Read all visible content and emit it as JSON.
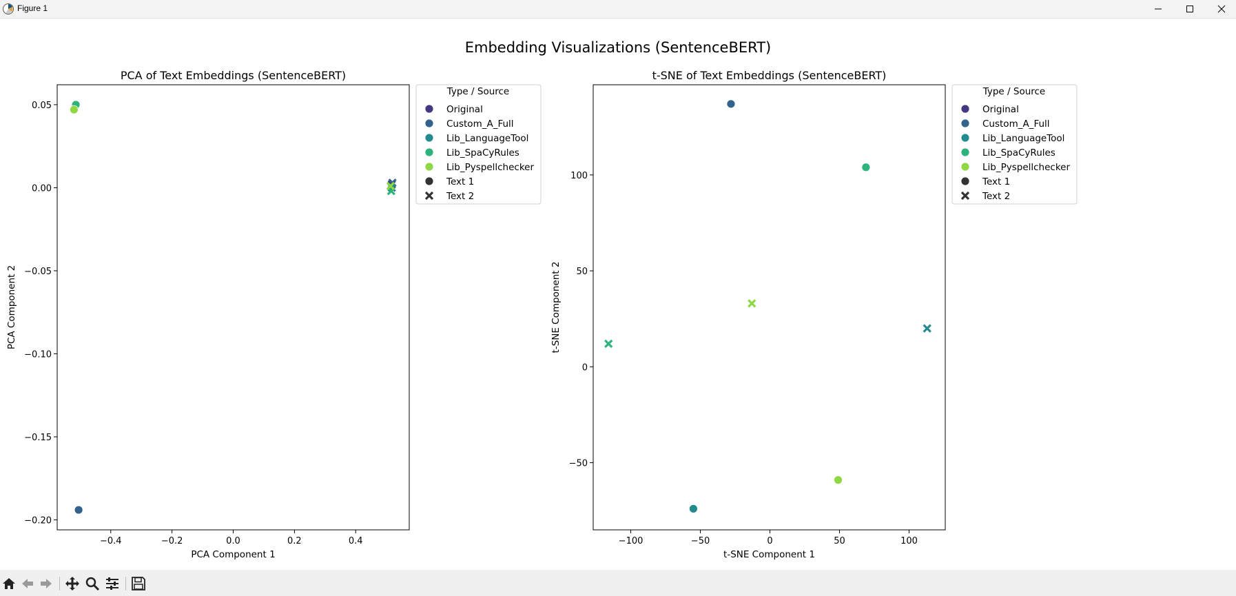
{
  "window": {
    "title": "Figure 1"
  },
  "figure": {
    "title": "Embedding Visualizations (SentenceBERT)"
  },
  "legend": {
    "title": "Type / Source",
    "entries": [
      {
        "label": "Original",
        "color": "#453781",
        "shape": "circle"
      },
      {
        "label": "Custom_A_Full",
        "color": "#33638d",
        "shape": "circle"
      },
      {
        "label": "Lib_LanguageTool",
        "color": "#238a8d",
        "shape": "circle"
      },
      {
        "label": "Lib_SpaCyRules",
        "color": "#2eb37c",
        "shape": "circle"
      },
      {
        "label": "Lib_Pyspellchecker",
        "color": "#8fd744",
        "shape": "circle"
      },
      {
        "label": "Text 1",
        "color": "#333333",
        "shape": "circle"
      },
      {
        "label": "Text 2",
        "color": "#333333",
        "shape": "x"
      }
    ]
  },
  "chart_data": [
    {
      "type": "scatter",
      "title": "PCA of Text Embeddings (SentenceBERT)",
      "xlabel": "PCA Component 1",
      "ylabel": "PCA Component 2",
      "xlim": [
        -0.575,
        0.575
      ],
      "ylim": [
        -0.206,
        0.062
      ],
      "xticks": [
        -0.4,
        -0.2,
        0.0,
        0.2,
        0.4
      ],
      "xtick_labels": [
        "−0.4",
        "−0.2",
        "0.0",
        "0.2",
        "0.4"
      ],
      "yticks": [
        -0.2,
        -0.15,
        -0.1,
        -0.05,
        0.0,
        0.05
      ],
      "ytick_labels": [
        "−0.20",
        "−0.15",
        "−0.10",
        "−0.05",
        "0.00",
        "0.05"
      ],
      "grid": false,
      "legend_position": "outside-top-right",
      "points": [
        {
          "source": "Original",
          "text": "Text 1",
          "x": -0.515,
          "y": 0.05
        },
        {
          "source": "Lib_LanguageTool",
          "text": "Text 1",
          "x": -0.515,
          "y": 0.05
        },
        {
          "source": "Lib_SpaCyRules",
          "text": "Text 1",
          "x": -0.514,
          "y": 0.05
        },
        {
          "source": "Lib_Pyspellchecker",
          "text": "Text 1",
          "x": -0.52,
          "y": 0.047
        },
        {
          "source": "Custom_A_Full",
          "text": "Text 1",
          "x": -0.505,
          "y": -0.194
        },
        {
          "source": "Original",
          "text": "Text 2",
          "x": 0.518,
          "y": 0.002
        },
        {
          "source": "Custom_A_Full",
          "text": "Text 2",
          "x": 0.52,
          "y": 0.003
        },
        {
          "source": "Lib_LanguageTool",
          "text": "Text 2",
          "x": 0.518,
          "y": 0.0
        },
        {
          "source": "Lib_SpaCyRules",
          "text": "Text 2",
          "x": 0.516,
          "y": -0.002
        },
        {
          "source": "Lib_Pyspellchecker",
          "text": "Text 2",
          "x": 0.514,
          "y": 0.001
        }
      ]
    },
    {
      "type": "scatter",
      "title": "t-SNE of Text Embeddings (SentenceBERT)",
      "xlabel": "t-SNE Component 1",
      "ylabel": "t-SNE Component 2",
      "xlim": [
        -127,
        126
      ],
      "ylim": [
        -85,
        147
      ],
      "xticks": [
        -100,
        -50,
        0,
        50,
        100
      ],
      "xtick_labels": [
        "−100",
        "−50",
        "0",
        "50",
        "100"
      ],
      "yticks": [
        -50,
        0,
        50,
        100
      ],
      "ytick_labels": [
        "−50",
        "0",
        "50",
        "100"
      ],
      "grid": false,
      "legend_position": "outside-top-right",
      "points": [
        {
          "source": "Custom_A_Full",
          "text": "Text 1",
          "x": -28,
          "y": 137
        },
        {
          "source": "Lib_SpaCyRules",
          "text": "Text 1",
          "x": 69,
          "y": 104
        },
        {
          "source": "Lib_Pyspellchecker",
          "text": "Text 2",
          "x": -13,
          "y": 33
        },
        {
          "source": "Lib_SpaCyRules",
          "text": "Text 2",
          "x": -116,
          "y": 12
        },
        {
          "source": "Lib_LanguageTool",
          "text": "Text 2",
          "x": 113,
          "y": 20
        },
        {
          "source": "Lib_Pyspellchecker",
          "text": "Text 1",
          "x": 49,
          "y": -59
        },
        {
          "source": "Lib_LanguageTool",
          "text": "Text 1",
          "x": -55,
          "y": -74
        }
      ]
    }
  ]
}
